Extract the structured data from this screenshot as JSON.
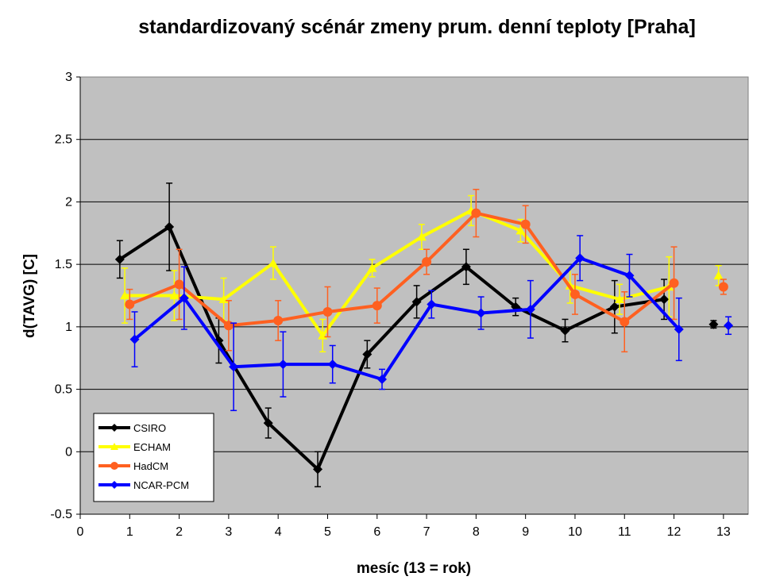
{
  "chart_data": {
    "type": "line",
    "title": "standardizovaný scénár zmeny prum. denní teploty [Praha]",
    "xlabel": "mesíc (13 = rok)",
    "ylabel": "d(TAVG)  [C]",
    "xlim": [
      0,
      13.5
    ],
    "ylim": [
      -0.5,
      3
    ],
    "xticks": [
      "0",
      "1",
      "2",
      "3",
      "4",
      "5",
      "6",
      "7",
      "8",
      "9",
      "10",
      "11",
      "12",
      "13"
    ],
    "yticks": [
      "-0.5",
      "0",
      "0.5",
      "1",
      "1.5",
      "2",
      "2.5",
      "3"
    ],
    "grid": true,
    "legend_position": "bottom-left",
    "plot_background": "#c0c0c0",
    "series": [
      {
        "name": "CSIRO",
        "color": "#000000",
        "marker": "diamond",
        "x": [
          0.8,
          1.8,
          2.8,
          3.8,
          4.8,
          5.8,
          6.8,
          7.8,
          8.8,
          9.8,
          10.8,
          11.8
        ],
        "values": [
          1.54,
          1.8,
          0.89,
          0.23,
          -0.14,
          0.78,
          1.2,
          1.48,
          1.16,
          0.97,
          1.16,
          1.22
        ],
        "error": [
          0.15,
          0.35,
          0.18,
          0.12,
          0.14,
          0.11,
          0.13,
          0.14,
          0.07,
          0.09,
          0.21,
          0.16
        ],
        "x_annual": 12.8,
        "annual": 1.02,
        "annual_error": 0.03
      },
      {
        "name": "ECHAM",
        "color": "#ffff00",
        "marker": "triangle",
        "x": [
          0.9,
          1.9,
          2.9,
          3.9,
          4.9,
          5.9,
          6.9,
          7.9,
          8.9,
          9.9,
          10.9,
          11.9
        ],
        "values": [
          1.25,
          1.25,
          1.22,
          1.51,
          0.93,
          1.47,
          1.72,
          1.93,
          1.77,
          1.33,
          1.22,
          1.32
        ],
        "error": [
          0.22,
          0.2,
          0.17,
          0.13,
          0.13,
          0.07,
          0.1,
          0.12,
          0.09,
          0.14,
          0.12,
          0.24
        ],
        "x_annual": 12.9,
        "annual": 1.41,
        "annual_error": 0.08
      },
      {
        "name": "HadCM",
        "color": "#ff6020",
        "marker": "circle",
        "x": [
          1.0,
          2.0,
          3.0,
          4.0,
          5.0,
          6.0,
          7.0,
          8.0,
          9.0,
          10.0,
          11.0,
          12.0
        ],
        "values": [
          1.18,
          1.34,
          1.01,
          1.05,
          1.12,
          1.17,
          1.52,
          1.91,
          1.82,
          1.26,
          1.04,
          1.35
        ],
        "error": [
          0.12,
          0.28,
          0.2,
          0.16,
          0.2,
          0.14,
          0.1,
          0.19,
          0.15,
          0.16,
          0.24,
          0.29
        ],
        "x_annual": 13.0,
        "annual": 1.32,
        "annual_error": 0.06
      },
      {
        "name": "NCAR-PCM",
        "color": "#0000ff",
        "marker": "diamond",
        "x": [
          1.1,
          2.1,
          3.1,
          4.1,
          5.1,
          6.1,
          7.1,
          8.1,
          9.1,
          10.1,
          11.1,
          12.1
        ],
        "values": [
          0.9,
          1.23,
          0.68,
          0.7,
          0.7,
          0.58,
          1.18,
          1.11,
          1.14,
          1.55,
          1.41,
          0.98
        ],
        "error": [
          0.22,
          0.25,
          0.35,
          0.26,
          0.15,
          0.08,
          0.11,
          0.13,
          0.23,
          0.18,
          0.17,
          0.25
        ],
        "x_annual": 13.1,
        "annual": 1.01,
        "annual_error": 0.07
      }
    ]
  }
}
